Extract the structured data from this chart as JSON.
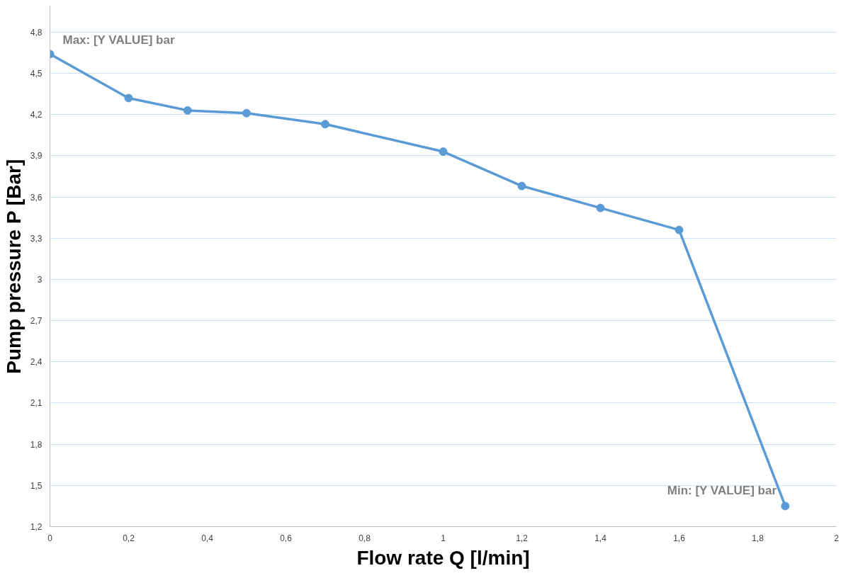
{
  "chart_data": {
    "type": "line",
    "xlabel": "Flow rate Q [l/min]",
    "ylabel": "Pump pressure P [Bar]",
    "x": [
      0,
      0.2,
      0.35,
      0.5,
      0.7,
      1,
      1.2,
      1.4,
      1.6,
      1.87
    ],
    "series": [
      {
        "color": "#5b9bd5",
        "values": [
          4.64,
          4.32,
          4.23,
          4.21,
          4.13,
          3.93,
          3.68,
          3.52,
          3.36,
          1.35
        ]
      }
    ],
    "xlim": [
      0,
      2
    ],
    "ylim": [
      1.2,
      4.99
    ],
    "xticks": [
      0,
      {
        "value": 0.2,
        "label": "0,2"
      },
      {
        "value": 0.4,
        "label": "0,4"
      },
      {
        "value": 0.6,
        "label": "0,6"
      },
      {
        "value": 0.8,
        "label": "0,8"
      },
      1,
      {
        "value": 1.2,
        "label": "1,2"
      },
      {
        "value": 1.4,
        "label": "1,4"
      },
      {
        "value": 1.6,
        "label": "1,6"
      },
      {
        "value": 1.8,
        "label": "1,8"
      },
      2
    ],
    "yticks": [
      {
        "value": 1.2,
        "label": "1,2"
      },
      {
        "value": 1.5,
        "label": "1,5"
      },
      {
        "value": 1.8,
        "label": "1,8"
      },
      {
        "value": 2.1,
        "label": "2,1"
      },
      {
        "value": 2.4,
        "label": "2,4"
      },
      {
        "value": 2.7,
        "label": "2,7"
      },
      3,
      {
        "value": 3.3,
        "label": "3,3"
      },
      {
        "value": 3.6,
        "label": "3,6"
      },
      {
        "value": 3.9,
        "label": "3,9"
      },
      {
        "value": 4.2,
        "label": "4,2"
      },
      {
        "value": 4.5,
        "label": "4,5"
      },
      {
        "value": 4.8,
        "label": "4,8"
      }
    ],
    "annotations": [
      {
        "text": "Max: [Y VALUE] bar",
        "x": 0,
        "y": 4.64
      },
      {
        "text": "Min: [Y VALUE] bar",
        "x": 1.87,
        "y": 1.35
      }
    ],
    "grid": "y",
    "marker": "circle",
    "line_style": "solid"
  }
}
